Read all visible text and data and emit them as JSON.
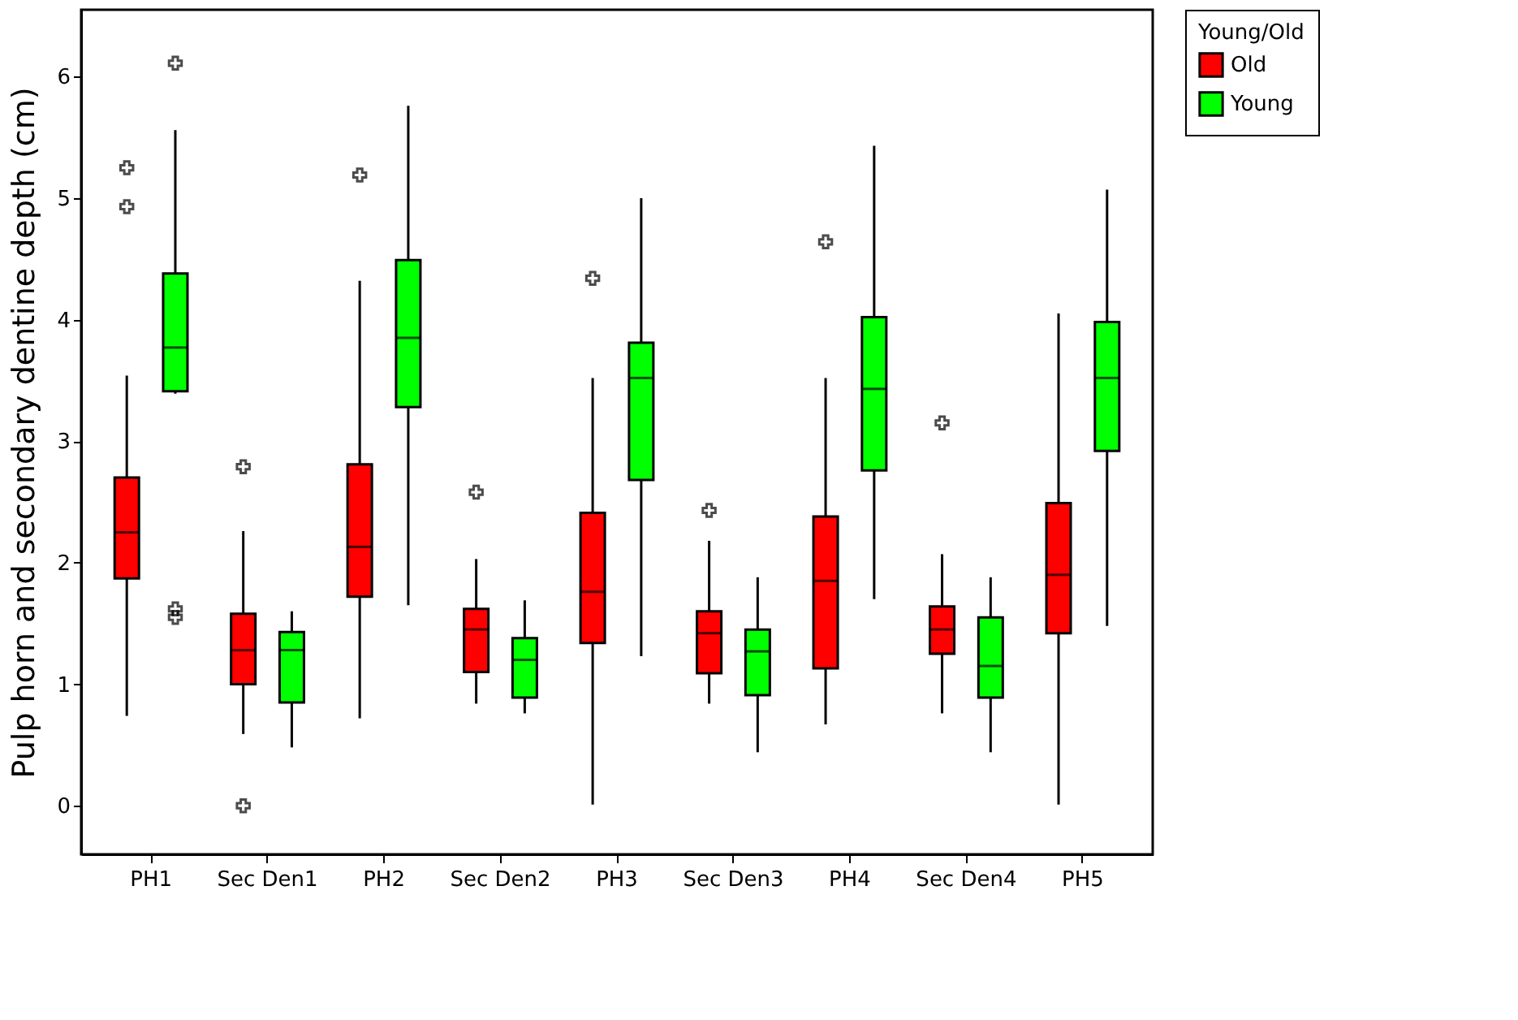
{
  "chart_data": {
    "type": "box",
    "ylabel": "Pulp horn and secondary dentine depth (cm)",
    "legend_title": "Young/Old",
    "legend": "top right",
    "grid": false,
    "categories": [
      "PH1",
      "Sec Den1",
      "PH2",
      "Sec Den2",
      "PH3",
      "Sec Den3",
      "PH4",
      "Sec Den4",
      "PH5"
    ],
    "ylim": [
      -0.4,
      6.55
    ],
    "yticks": [
      0,
      1,
      2,
      3,
      4,
      5,
      6
    ],
    "marker": "cross",
    "series": [
      {
        "name": "Old",
        "color": "#ff0000",
        "boxes": [
          {
            "low": 0.74,
            "q1": 1.87,
            "median": 2.25,
            "q3": 2.7,
            "high": 3.54,
            "outliers": [
              5.25,
              4.93
            ]
          },
          {
            "low": 0.59,
            "q1": 1.0,
            "median": 1.28,
            "q3": 1.58,
            "high": 2.26,
            "outliers": [
              2.79,
              0.0
            ]
          },
          {
            "low": 0.72,
            "q1": 1.72,
            "median": 2.13,
            "q3": 2.81,
            "high": 4.32,
            "outliers": [
              5.19
            ]
          },
          {
            "low": 0.84,
            "q1": 1.1,
            "median": 1.45,
            "q3": 1.62,
            "high": 2.03,
            "outliers": [
              2.58
            ]
          },
          {
            "low": 0.01,
            "q1": 1.34,
            "median": 1.76,
            "q3": 2.41,
            "high": 3.52,
            "outliers": [
              4.34
            ]
          },
          {
            "low": 0.84,
            "q1": 1.09,
            "median": 1.42,
            "q3": 1.6,
            "high": 2.18,
            "outliers": [
              2.43
            ]
          },
          {
            "low": 0.67,
            "q1": 1.13,
            "median": 1.85,
            "q3": 2.38,
            "high": 3.52,
            "outliers": [
              4.64
            ]
          },
          {
            "low": 0.76,
            "q1": 1.25,
            "median": 1.45,
            "q3": 1.64,
            "high": 2.07,
            "outliers": [
              3.15
            ]
          },
          {
            "low": 0.01,
            "q1": 1.42,
            "median": 1.9,
            "q3": 2.49,
            "high": 4.05
          }
        ]
      },
      {
        "name": "Young",
        "color": "#00ff00",
        "boxes": [
          {
            "low": 3.39,
            "q1": 3.41,
            "median": 3.77,
            "q3": 4.38,
            "high": 5.56,
            "outliers": [
              6.11,
              1.62,
              1.55
            ]
          },
          {
            "low": 0.48,
            "q1": 0.85,
            "median": 1.28,
            "q3": 1.43,
            "high": 1.6
          },
          {
            "low": 1.65,
            "q1": 3.28,
            "median": 3.85,
            "q3": 4.49,
            "high": 5.76
          },
          {
            "low": 0.76,
            "q1": 0.89,
            "median": 1.2,
            "q3": 1.38,
            "high": 1.69
          },
          {
            "low": 1.23,
            "q1": 2.68,
            "median": 3.52,
            "q3": 3.81,
            "high": 5.0
          },
          {
            "low": 0.44,
            "q1": 0.91,
            "median": 1.27,
            "q3": 1.45,
            "high": 1.88
          },
          {
            "low": 1.7,
            "q1": 2.76,
            "median": 3.43,
            "q3": 4.02,
            "high": 5.43
          },
          {
            "low": 0.44,
            "q1": 0.89,
            "median": 1.15,
            "q3": 1.55,
            "high": 1.88
          },
          {
            "low": 1.48,
            "q1": 2.92,
            "median": 3.52,
            "q3": 3.98,
            "high": 5.07
          }
        ]
      }
    ]
  }
}
